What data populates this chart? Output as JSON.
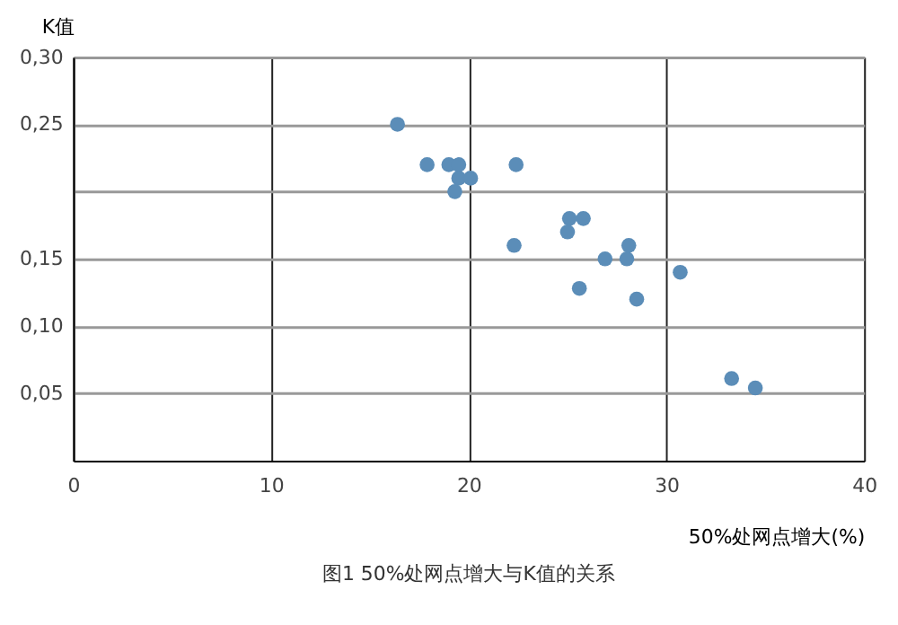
{
  "chart_data": {
    "type": "scatter",
    "xlabel": "50%处网点增大(%)",
    "ylabel": "K值",
    "annotations": [
      "图1 50%处网点增大与K值的关系"
    ],
    "x": [
      16.4,
      17.9,
      19.0,
      19.5,
      19.5,
      20.1,
      19.3,
      22.4,
      22.3,
      25.1,
      25.8,
      25.0,
      28.1,
      26.9,
      28.0,
      30.7,
      25.6,
      28.5,
      33.3,
      34.5
    ],
    "series": [
      {
        "color": "#5b8db8",
        "values": [
          0.25,
          0.22,
          0.22,
          0.22,
          0.21,
          0.21,
          0.2,
          0.22,
          0.16,
          0.18,
          0.18,
          0.17,
          0.16,
          0.15,
          0.15,
          0.14,
          0.128,
          0.12,
          0.061,
          0.054
        ]
      }
    ],
    "xlim": [
      0,
      40
    ],
    "xticks": [
      0,
      10,
      20,
      30,
      40
    ],
    "ylim": [
      0,
      0.3
    ],
    "yticks": [
      {
        "value": 0.05,
        "label": "0,05"
      },
      {
        "value": 0.1,
        "label": "0,10"
      },
      {
        "value": 0.15,
        "label": "0,15"
      },
      {
        "value": 0.2,
        "label": null
      },
      {
        "value": 0.25,
        "label": "0,25"
      },
      {
        "value": 0.3,
        "label": "0,30"
      }
    ],
    "grid": true,
    "marker": "circle",
    "legend": false
  }
}
